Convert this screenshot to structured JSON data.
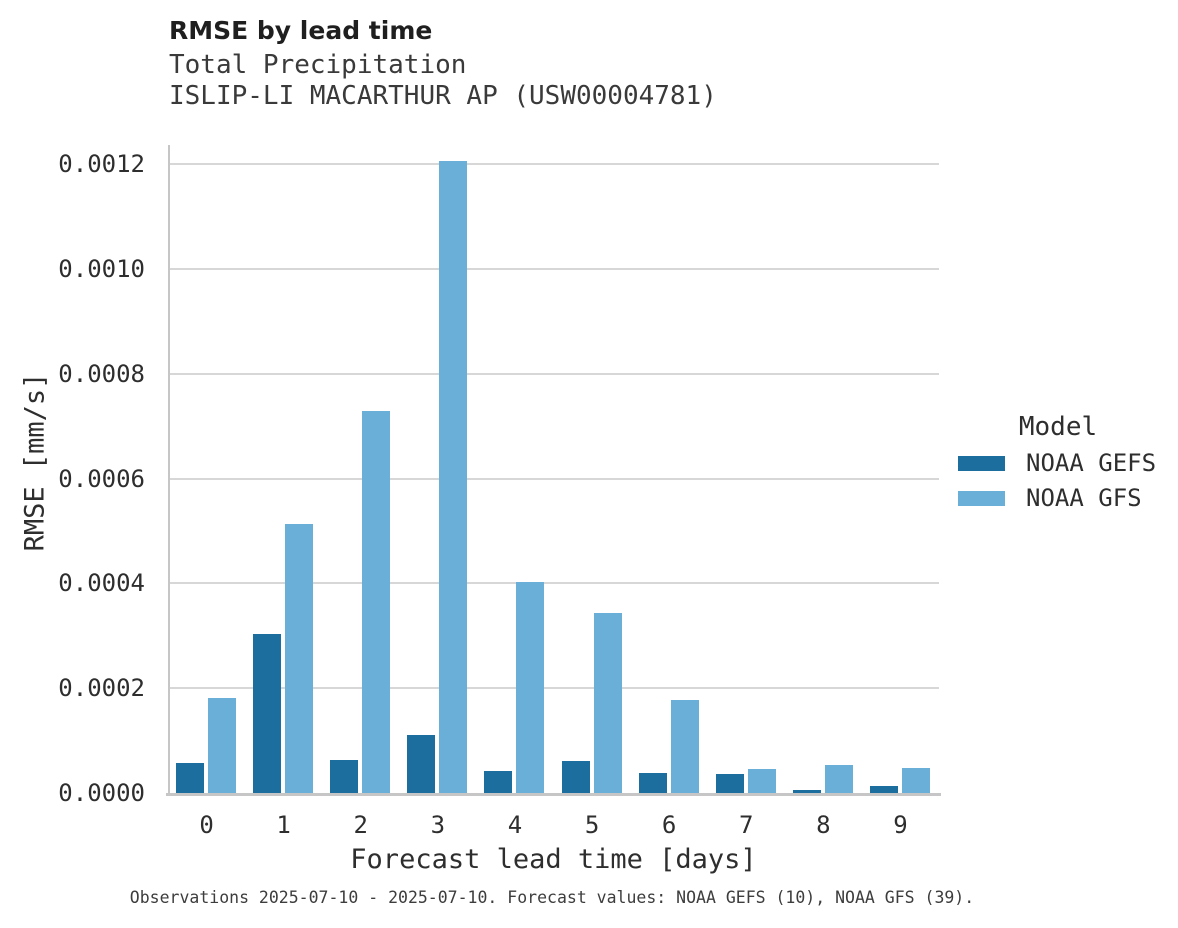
{
  "chart_data": {
    "type": "bar",
    "title": "RMSE by lead time",
    "subtitle_line1": "Total Precipitation",
    "subtitle_line2": "ISLIP-LI MACARTHUR AP (USW00004781)",
    "xlabel": "Forecast lead time [days]",
    "ylabel": "RMSE [mm/s]",
    "caption": "Observations 2025-07-10 - 2025-07-10. Forecast values: NOAA GEFS (10), NOAA GFS (39).",
    "categories": [
      "0",
      "1",
      "2",
      "3",
      "4",
      "5",
      "6",
      "7",
      "8",
      "9"
    ],
    "series": [
      {
        "name": "NOAA GEFS",
        "color": "#1c6e9e",
        "values": [
          5.65e-05,
          0.000303,
          6.35e-05,
          0.00011,
          4.25e-05,
          6.15e-05,
          3.75e-05,
          3.65e-05,
          6e-06,
          1.25e-05
        ]
      },
      {
        "name": "NOAA GFS",
        "color": "#6aafd7",
        "values": [
          0.000181,
          0.000513,
          0.000729,
          0.001205,
          0.000403,
          0.000343,
          0.000178,
          4.55e-05,
          5.25e-05,
          4.75e-05
        ]
      }
    ],
    "y_ticks": [
      {
        "value": 0.0,
        "label": "0.0000"
      },
      {
        "value": 0.0002,
        "label": "0.0002"
      },
      {
        "value": 0.0004,
        "label": "0.0004"
      },
      {
        "value": 0.0006,
        "label": "0.0006"
      },
      {
        "value": 0.0008,
        "label": "0.0008"
      },
      {
        "value": 0.001,
        "label": "0.0010"
      },
      {
        "value": 0.0012,
        "label": "0.0012"
      }
    ],
    "ylim": [
      0,
      0.00124
    ],
    "grid": "horizontal-major",
    "legend": {
      "title": "Model",
      "position": "right"
    }
  },
  "colors": {
    "gridline": "#d7d7d7",
    "axis_line": "#c6c6c6",
    "tick_text": "#2e2e2e",
    "title_text": "#1f1f1f",
    "subtitle_text": "#3a3a3a",
    "caption_text": "#3d3d3d",
    "background": "#ffffff"
  }
}
